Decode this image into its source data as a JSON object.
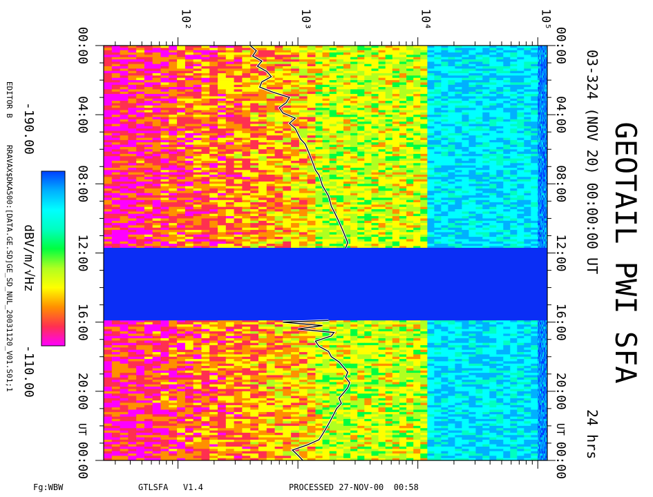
{
  "window": {
    "frame_color": "#000000"
  },
  "header": {
    "title": "GEOTAIL PWI SFA",
    "subtitle": "03-324 (NOV 20) 00:00:00 UT",
    "duration": "24 hrs"
  },
  "footer": {
    "left": "Fg:WBW",
    "center": "GTLSFA   V1.4",
    "right": "PROCESSED 27-NOV-00  00:58"
  },
  "side_notes": {
    "editor": "EDITOR B",
    "path": "RRAVAX$DKA500:[DATA.GE.SD]GE_SD_NUL_20031120_V01.S01;1"
  },
  "colorbar": {
    "unit": "dBV/m/√Hz",
    "min_label": "-190.00",
    "max_label": "-110.00",
    "colors": [
      "#ff00ff",
      "#ff3050",
      "#ff9000",
      "#ffff00",
      "#b0ff20",
      "#00ff40",
      "#00ffc0",
      "#00ffff",
      "#00b0ff",
      "#0040ff"
    ]
  },
  "chart_data": {
    "type": "heatmap",
    "x_axis": {
      "quantity": "frequency",
      "scale": "log",
      "range_hz": [
        24,
        120000
      ],
      "tick_labels": [
        "10²",
        "10³",
        "10⁴",
        "10⁵"
      ],
      "tick_values": [
        100,
        1000,
        10000,
        100000
      ]
    },
    "y_axis": {
      "quantity": "time (UT)",
      "range_hours": [
        0,
        24
      ],
      "tick_labels": [
        "00:00",
        "04:00",
        "08:00",
        "12:00",
        "16:00",
        "20:00",
        "00:00"
      ],
      "tick_values": [
        0,
        4,
        8,
        12,
        16,
        20,
        24
      ],
      "ut_marker": "UT"
    },
    "data_gap_hours": [
      11.7,
      15.9
    ],
    "instrument_band_edges_hz": [
      1400,
      12000,
      100000
    ],
    "plasma_line_khz": [
      [
        0.0,
        0.4
      ],
      [
        0.3,
        0.45
      ],
      [
        0.6,
        0.42
      ],
      [
        0.9,
        0.5
      ],
      [
        1.2,
        0.46
      ],
      [
        1.5,
        0.55
      ],
      [
        1.8,
        0.6
      ],
      [
        2.1,
        0.5
      ],
      [
        2.4,
        0.48
      ],
      [
        2.7,
        0.62
      ],
      [
        3.0,
        0.85
      ],
      [
        3.3,
        0.8
      ],
      [
        3.6,
        0.7
      ],
      [
        3.9,
        0.75
      ],
      [
        4.2,
        0.95
      ],
      [
        4.5,
        0.85
      ],
      [
        4.8,
        0.95
      ],
      [
        5.1,
        1.0
      ],
      [
        5.4,
        1.05
      ],
      [
        5.7,
        1.15
      ],
      [
        6.0,
        1.2
      ],
      [
        6.3,
        1.25
      ],
      [
        6.6,
        1.3
      ],
      [
        6.9,
        1.35
      ],
      [
        7.2,
        1.4
      ],
      [
        7.5,
        1.5
      ],
      [
        7.8,
        1.55
      ],
      [
        8.1,
        1.6
      ],
      [
        8.4,
        1.7
      ],
      [
        8.7,
        1.8
      ],
      [
        9.0,
        1.85
      ],
      [
        9.3,
        1.9
      ],
      [
        9.6,
        2.0
      ],
      [
        9.9,
        2.1
      ],
      [
        10.2,
        2.2
      ],
      [
        10.5,
        2.3
      ],
      [
        10.8,
        2.4
      ],
      [
        11.1,
        2.5
      ],
      [
        11.4,
        2.6
      ],
      [
        11.7,
        2.5
      ],
      [
        15.9,
        1.8
      ],
      [
        16.0,
        0.75
      ],
      [
        16.2,
        1.6
      ],
      [
        16.4,
        1.0
      ],
      [
        16.6,
        2.0
      ],
      [
        16.8,
        1.9
      ],
      [
        17.1,
        1.4
      ],
      [
        17.4,
        1.5
      ],
      [
        17.7,
        1.8
      ],
      [
        18.0,
        1.9
      ],
      [
        18.3,
        2.2
      ],
      [
        18.6,
        2.4
      ],
      [
        18.9,
        2.6
      ],
      [
        19.2,
        2.5
      ],
      [
        19.5,
        2.7
      ],
      [
        19.8,
        2.6
      ],
      [
        20.1,
        2.4
      ],
      [
        20.4,
        2.2
      ],
      [
        20.7,
        2.3
      ],
      [
        21.0,
        2.1
      ],
      [
        21.3,
        2.0
      ],
      [
        21.6,
        1.9
      ],
      [
        21.9,
        1.8
      ],
      [
        22.2,
        1.7
      ],
      [
        22.5,
        1.6
      ],
      [
        22.8,
        1.5
      ],
      [
        23.1,
        1.2
      ],
      [
        23.4,
        0.9
      ],
      [
        23.7,
        1.0
      ],
      [
        24.0,
        1.1
      ]
    ]
  }
}
